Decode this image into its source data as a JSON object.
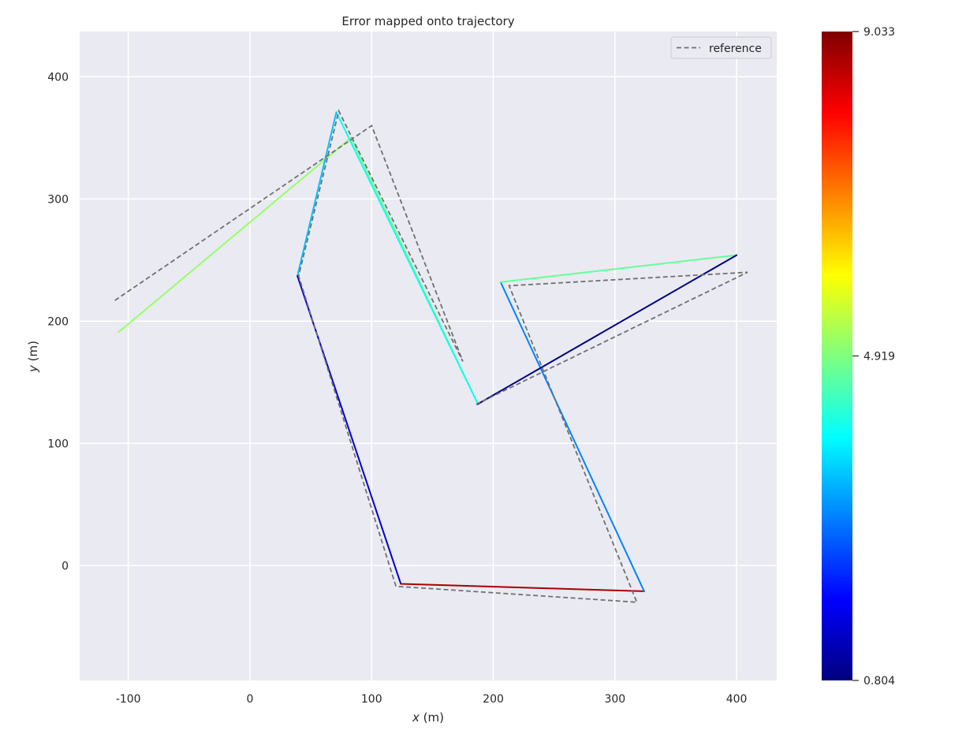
{
  "chart_data": {
    "type": "line",
    "title": "Error mapped onto trajectory",
    "xlabel_var": "x",
    "xlabel_unit": " (m)",
    "ylabel_var": "y",
    "ylabel_unit": " (m)",
    "xlim": [
      -140,
      433
    ],
    "ylim": [
      -94,
      437
    ],
    "xticks": [
      -100,
      0,
      100,
      200,
      300,
      400
    ],
    "yticks": [
      0,
      100,
      200,
      300,
      400
    ],
    "grid": true,
    "legend": {
      "position": "top-right",
      "entries": [
        "reference"
      ]
    },
    "reference": {
      "name": "reference",
      "color": "#707070",
      "points": [
        [
          -111,
          217
        ],
        [
          100,
          360
        ],
        [
          175,
          167
        ],
        [
          73,
          372
        ],
        [
          40,
          237
        ],
        [
          120,
          -17
        ],
        [
          318,
          -30
        ],
        [
          213,
          229
        ],
        [
          409,
          240
        ],
        [
          186,
          132
        ]
      ]
    },
    "trajectory": {
      "points": [
        [
          -108,
          191
        ],
        [
          83,
          350
        ],
        [
          187,
          133
        ],
        [
          71,
          371
        ],
        [
          39,
          237
        ],
        [
          124,
          -15
        ],
        [
          324,
          -21
        ],
        [
          206,
          232
        ],
        [
          400,
          254
        ],
        [
          187,
          132
        ]
      ],
      "segment_errors": [
        5.1,
        4.8,
        4.0,
        3.4,
        1.5,
        8.7,
        2.9,
        4.7,
        0.85
      ]
    },
    "colorbar": {
      "min": 0.804,
      "max": 9.033,
      "ticks": [
        "0.804",
        "4.919",
        "9.033"
      ],
      "colormap": [
        "#00007f",
        "#0000ff",
        "#007fff",
        "#00ffff",
        "#7fff7f",
        "#ffff00",
        "#ff7f00",
        "#ff0000",
        "#7f0000"
      ]
    }
  }
}
